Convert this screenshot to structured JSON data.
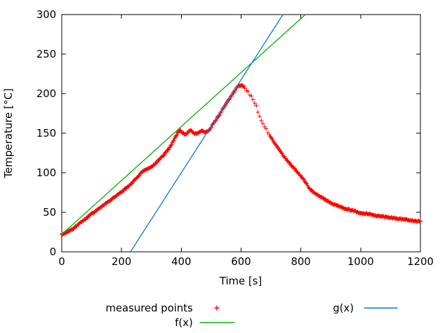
{
  "chart_data": {
    "type": "scatter",
    "title": "",
    "xlabel": "Time [s]",
    "ylabel": "Temperature [°C]",
    "xlim": [
      0,
      1200
    ],
    "ylim": [
      0,
      300
    ],
    "xticks": [
      0,
      200,
      400,
      600,
      800,
      1000,
      1200
    ],
    "yticks": [
      0,
      50,
      100,
      150,
      200,
      250,
      300
    ],
    "grid": false,
    "legend_position": "below",
    "axis_color": "#000000",
    "series": [
      {
        "name": "measured points",
        "type": "points",
        "marker": "plus",
        "color": "#ff0000",
        "points": [
          [
            0,
            22
          ],
          [
            20,
            25
          ],
          [
            40,
            30
          ],
          [
            60,
            36
          ],
          [
            80,
            42
          ],
          [
            100,
            48
          ],
          [
            120,
            53
          ],
          [
            140,
            59
          ],
          [
            160,
            65
          ],
          [
            180,
            70
          ],
          [
            200,
            76
          ],
          [
            220,
            82
          ],
          [
            240,
            89
          ],
          [
            255,
            95
          ],
          [
            268,
            101
          ],
          [
            282,
            104
          ],
          [
            300,
            107
          ],
          [
            320,
            114
          ],
          [
            340,
            122
          ],
          [
            358,
            130
          ],
          [
            372,
            139
          ],
          [
            383,
            147
          ],
          [
            390,
            152
          ],
          [
            398,
            153
          ],
          [
            406,
            150
          ],
          [
            414,
            149
          ],
          [
            422,
            151
          ],
          [
            430,
            154
          ],
          [
            438,
            152
          ],
          [
            446,
            149
          ],
          [
            454,
            150
          ],
          [
            462,
            152
          ],
          [
            470,
            153
          ],
          [
            478,
            151
          ],
          [
            486,
            152
          ],
          [
            495,
            155
          ],
          [
            510,
            164
          ],
          [
            525,
            172
          ],
          [
            540,
            181
          ],
          [
            555,
            190
          ],
          [
            570,
            199
          ],
          [
            582,
            206
          ],
          [
            592,
            210
          ],
          [
            600,
            211
          ],
          [
            608,
            209
          ],
          [
            616,
            206
          ],
          [
            624,
            202
          ],
          [
            632,
            197
          ],
          [
            640,
            192
          ],
          [
            648,
            186
          ],
          [
            654,
            180
          ],
          [
            660,
            174
          ],
          [
            666,
            168
          ],
          [
            672,
            162
          ],
          [
            680,
            157
          ],
          [
            688,
            152
          ],
          [
            697,
            147
          ],
          [
            707,
            141
          ],
          [
            717,
            135
          ],
          [
            727,
            129
          ],
          [
            737,
            124
          ],
          [
            747,
            119
          ],
          [
            757,
            114
          ],
          [
            767,
            110
          ],
          [
            777,
            106
          ],
          [
            787,
            102
          ],
          [
            797,
            97
          ],
          [
            807,
            93
          ],
          [
            817,
            87
          ],
          [
            827,
            81
          ],
          [
            837,
            77
          ],
          [
            847,
            74
          ],
          [
            860,
            71
          ],
          [
            875,
            68
          ],
          [
            890,
            64
          ],
          [
            905,
            61
          ],
          [
            925,
            58
          ],
          [
            945,
            55
          ],
          [
            965,
            53
          ],
          [
            985,
            51
          ],
          [
            1005,
            49
          ],
          [
            1025,
            48
          ],
          [
            1045,
            46
          ],
          [
            1065,
            45
          ],
          [
            1085,
            44
          ],
          [
            1105,
            43
          ],
          [
            1125,
            42
          ],
          [
            1145,
            41
          ],
          [
            1165,
            40
          ],
          [
            1185,
            39
          ],
          [
            1200,
            39
          ]
        ]
      },
      {
        "name": "f(x)",
        "type": "line",
        "color": "#00b000",
        "endpoints": [
          [
            0,
            22
          ],
          [
            815,
            300
          ]
        ]
      },
      {
        "name": "g(x)",
        "type": "line",
        "color": "#0e74d4",
        "endpoints": [
          [
            230,
            0
          ],
          [
            740,
            300
          ]
        ]
      }
    ]
  }
}
